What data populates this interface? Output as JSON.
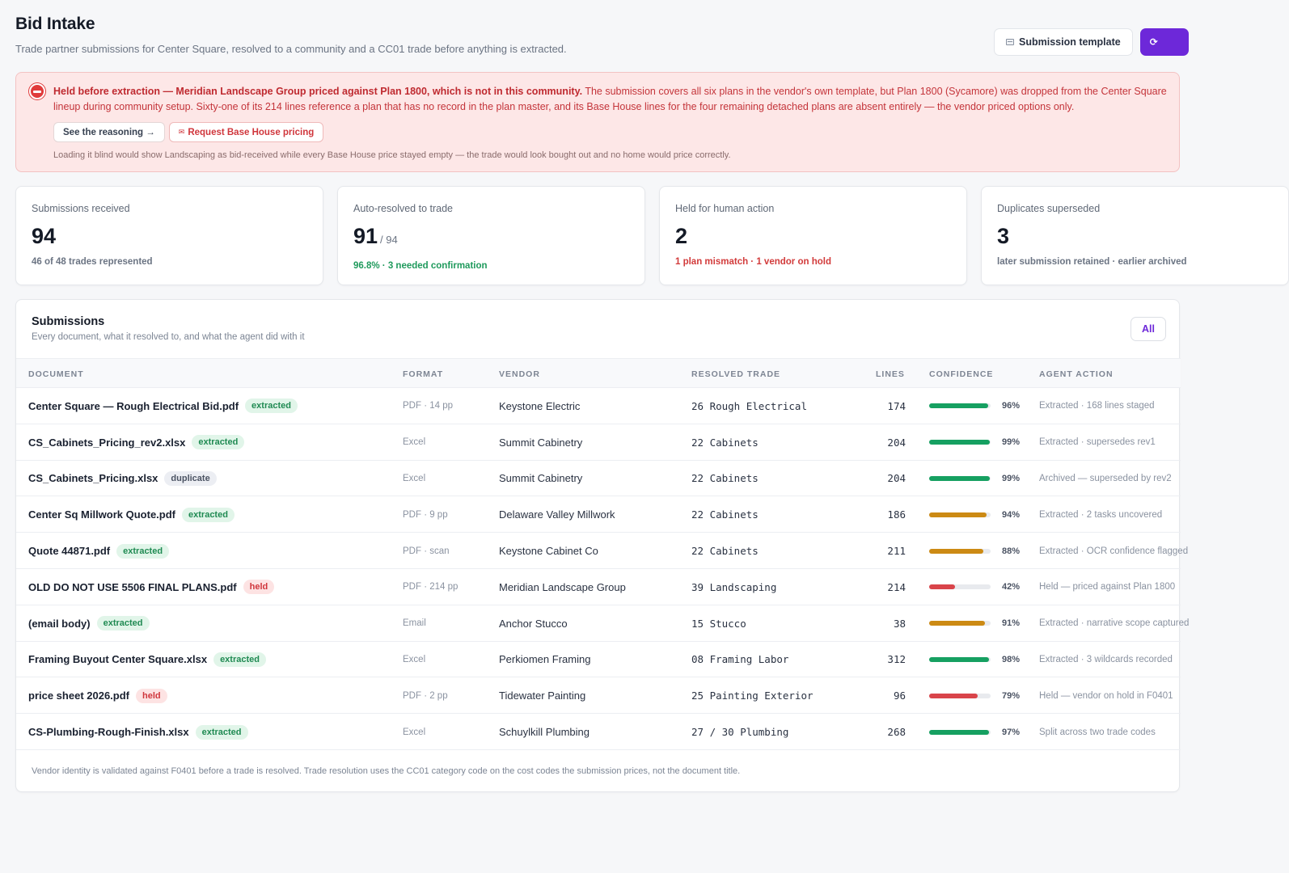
{
  "header": {
    "title": "Bid Intake",
    "subtitle": "Trade partner submissions for Center Square, resolved to a community and a CC01 trade before anything is extracted.",
    "template_button": "Submission template",
    "primary_button": "⟳"
  },
  "alert": {
    "lead": "Held before extraction — Meridian Landscape Group priced against Plan 1800, which is not in this community.",
    "body": "The submission covers all six plans in the vendor's own template, but Plan 1800 (Sycamore) was dropped from the Center Square lineup during community setup. Sixty-one of its 214 lines reference a plan that has no record in the plan master, and its Base House lines for the four remaining detached plans are absent entirely — the vendor priced options only.",
    "reasoning_button": "See the reasoning →",
    "request_button": "Request Base House pricing",
    "note": "Loading it blind would show Landscaping as bid-received while every Base House price stayed empty — the trade would look bought out and no home would price correctly."
  },
  "stats": [
    {
      "label": "Submissions received",
      "value": "94",
      "suffix": "",
      "sub": "46 of 48 trades represented",
      "tone": "muted"
    },
    {
      "label": "Auto-resolved to trade",
      "value": "91",
      "suffix": "/ 94",
      "sub": "96.8% · 3 needed confirmation",
      "tone": "green"
    },
    {
      "label": "Held for human action",
      "value": "2",
      "suffix": "",
      "sub": "1 plan mismatch · 1 vendor on hold",
      "tone": "red"
    },
    {
      "label": "Duplicates superseded",
      "value": "3",
      "suffix": "",
      "sub": "later submission retained · earlier archived",
      "tone": "muted"
    }
  ],
  "submissions": {
    "title": "Submissions",
    "subtitle": "Every document, what it resolved to, and what the agent did with it",
    "filter_label": "All",
    "columns": [
      "Document",
      "Format",
      "Vendor",
      "Resolved trade",
      "Lines",
      "Confidence",
      "Agent action"
    ],
    "rows": [
      {
        "document": "Center Square — Rough Electrical Bid.pdf",
        "status": "extracted",
        "format": "PDF · 14 pp",
        "vendor": "Keystone Electric",
        "trade": "26 Rough Electrical",
        "lines": "174",
        "confidence": 96,
        "confidence_label": "96%",
        "bar_color": "#16a061",
        "action": "Extracted · 168 lines staged"
      },
      {
        "document": "CS_Cabinets_Pricing_rev2.xlsx",
        "status": "extracted",
        "format": "Excel",
        "vendor": "Summit Cabinetry",
        "trade": "22 Cabinets",
        "lines": "204",
        "confidence": 99,
        "confidence_label": "99%",
        "bar_color": "#16a061",
        "action": "Extracted · supersedes rev1"
      },
      {
        "document": "CS_Cabinets_Pricing.xlsx",
        "status": "duplicate",
        "format": "Excel",
        "vendor": "Summit Cabinetry",
        "trade": "22 Cabinets",
        "lines": "204",
        "confidence": 99,
        "confidence_label": "99%",
        "bar_color": "#16a061",
        "action": "Archived — superseded by rev2"
      },
      {
        "document": "Center Sq Millwork Quote.pdf",
        "status": "extracted",
        "format": "PDF · 9 pp",
        "vendor": "Delaware Valley Millwork",
        "trade": "22 Cabinets",
        "lines": "186",
        "confidence": 94,
        "confidence_label": "94%",
        "bar_color": "#cc8a14",
        "action": "Extracted · 2 tasks uncovered"
      },
      {
        "document": "Quote 44871.pdf",
        "status": "extracted",
        "format": "PDF · scan",
        "vendor": "Keystone Cabinet Co",
        "trade": "22 Cabinets",
        "lines": "211",
        "confidence": 88,
        "confidence_label": "88%",
        "bar_color": "#cc8a14",
        "action": "Extracted · OCR confidence flagged"
      },
      {
        "document": "OLD DO NOT USE 5506 FINAL PLANS.pdf",
        "status": "held",
        "format": "PDF · 214 pp",
        "vendor": "Meridian Landscape Group",
        "trade": "39 Landscaping",
        "lines": "214",
        "confidence": 42,
        "confidence_label": "42%",
        "bar_color": "#d9444a",
        "action": "Held — priced against Plan 1800"
      },
      {
        "document": "(email body)",
        "status": "extracted",
        "format": "Email",
        "vendor": "Anchor Stucco",
        "trade": "15 Stucco",
        "lines": "38",
        "confidence": 91,
        "confidence_label": "91%",
        "bar_color": "#cc8a14",
        "action": "Extracted · narrative scope captured"
      },
      {
        "document": "Framing Buyout Center Square.xlsx",
        "status": "extracted",
        "format": "Excel",
        "vendor": "Perkiomen Framing",
        "trade": "08 Framing Labor",
        "lines": "312",
        "confidence": 98,
        "confidence_label": "98%",
        "bar_color": "#16a061",
        "action": "Extracted · 3 wildcards recorded"
      },
      {
        "document": "price sheet 2026.pdf",
        "status": "held",
        "format": "PDF · 2 pp",
        "vendor": "Tidewater Painting",
        "trade": "25 Painting Exterior",
        "lines": "96",
        "confidence": 79,
        "confidence_label": "79%",
        "bar_color": "#d9444a",
        "action": "Held — vendor on hold in F0401"
      },
      {
        "document": "CS-Plumbing-Rough-Finish.xlsx",
        "status": "extracted",
        "format": "Excel",
        "vendor": "Schuylkill Plumbing",
        "trade": "27 / 30 Plumbing",
        "lines": "268",
        "confidence": 97,
        "confidence_label": "97%",
        "bar_color": "#16a061",
        "action": "Split across two trade codes"
      }
    ],
    "footer": "Vendor identity is validated against F0401 before a trade is resolved. Trade resolution uses the CC01 category code on the cost codes the submission prices, not the document title."
  }
}
